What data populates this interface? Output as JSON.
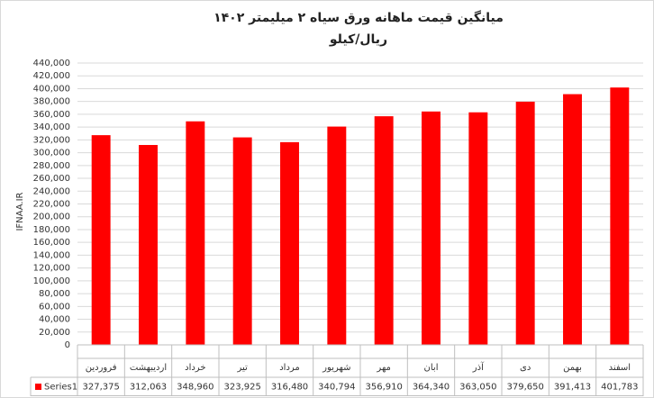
{
  "chart_data": {
    "type": "bar",
    "title": "میانگین قیمت ماهانه ورق سیاه ۲ میلیمتر ۱۴۰۲",
    "subtitle": "ریال/کیلو",
    "y_label": "IFNAA.IR",
    "categories": [
      "فروردین",
      "اردیبهشت",
      "خرداد",
      "تیر",
      "مرداد",
      "شهریور",
      "مهر",
      "ابان",
      "آذر",
      "دی",
      "بهمن",
      "اسفند"
    ],
    "series": [
      {
        "name": "Series1",
        "color": "#ff0000",
        "values": [
          327375,
          312063,
          348960,
          323925,
          316480,
          340794,
          356910,
          364340,
          363050,
          379650,
          391413,
          401783
        ],
        "value_labels": [
          "327,375",
          "312,063",
          "348,960",
          "323,925",
          "316,480",
          "340,794",
          "356,910",
          "364,340",
          "363,050",
          "379,650",
          "391,413",
          "401,783"
        ]
      }
    ],
    "ylim": [
      0,
      440000
    ],
    "yticks": [
      0,
      {
        "value": 20000,
        "label": "20,000"
      },
      {
        "value": 40000,
        "label": "40,000"
      },
      {
        "value": 60000,
        "label": "60,000"
      },
      {
        "value": 80000,
        "label": "80,000"
      },
      {
        "value": 100000,
        "label": "100,000"
      },
      {
        "value": 120000,
        "label": "120,000"
      },
      {
        "value": 140000,
        "label": "140,000"
      },
      {
        "value": 160000,
        "label": "160,000"
      },
      {
        "value": 180000,
        "label": "180,000"
      },
      {
        "value": 200000,
        "label": "200,000"
      },
      {
        "value": 220000,
        "label": "220,000"
      },
      {
        "value": 240000,
        "label": "240,000"
      },
      {
        "value": 260000,
        "label": "260,000"
      },
      {
        "value": 280000,
        "label": "280,000"
      },
      {
        "value": 300000,
        "label": "300,000"
      },
      {
        "value": 320000,
        "label": "320,000"
      },
      {
        "value": 340000,
        "label": "340,000"
      },
      {
        "value": 360000,
        "label": "360,000"
      },
      {
        "value": 380000,
        "label": "380,000"
      },
      {
        "value": 400000,
        "label": "400,000"
      },
      {
        "value": 420000,
        "label": "420,000"
      },
      {
        "value": 440000,
        "label": "440,000"
      }
    ],
    "grid": true
  }
}
